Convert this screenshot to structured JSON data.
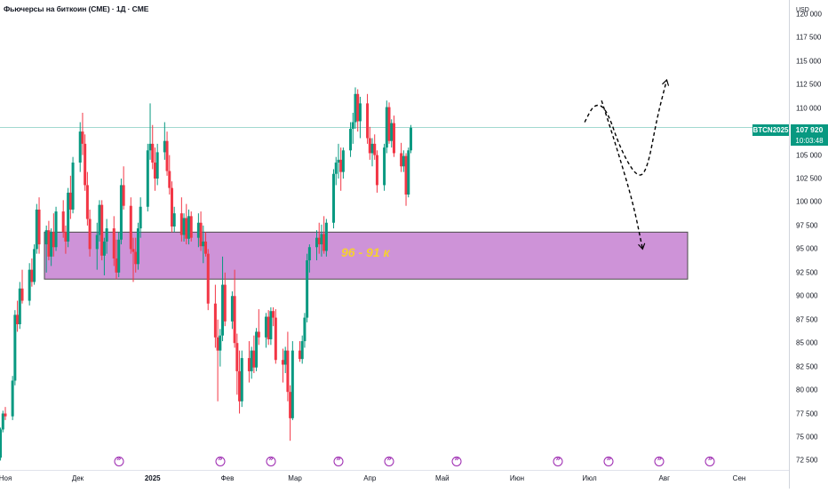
{
  "title": "Фьючерсы на биткоин (CME) · 1Д · CME",
  "currency": "USD",
  "price_tag": {
    "symbol": "BTCN2025",
    "price": "107 920",
    "countdown": "10:03:48"
  },
  "zone": {
    "label": "96 - 91 к",
    "top": 96800,
    "bottom": 91800,
    "fill": "#ce93d8",
    "border": "#4a4a4a",
    "label_color": "#f5d130"
  },
  "colors": {
    "up": "#089981",
    "down": "#f23645",
    "price_line": "#089981",
    "event": "#9c27b0"
  },
  "y_axis": {
    "ticks": [
      "120 000",
      "117 500",
      "115 000",
      "112 500",
      "110 000",
      "107 500",
      "105 000",
      "102 500",
      "100 000",
      "97 500",
      "95 000",
      "92 500",
      "90 000",
      "87 500",
      "85 000",
      "82 500",
      "80 000",
      "77 500",
      "75 000",
      "72 500"
    ],
    "min": 71500,
    "max": 121500
  },
  "x_axis": {
    "labels": [
      {
        "text": "Ноя",
        "date": "2024-11-01"
      },
      {
        "text": "Дек",
        "date": "2024-12-01"
      },
      {
        "text": "2025",
        "date": "2025-01-01",
        "bold": true
      },
      {
        "text": "Фев",
        "date": "2025-02-01"
      },
      {
        "text": "Мар",
        "date": "2025-03-01"
      },
      {
        "text": "Апр",
        "date": "2025-04-01"
      },
      {
        "text": "Май",
        "date": "2025-05-01"
      },
      {
        "text": "Июн",
        "date": "2025-06-01"
      },
      {
        "text": "Июл",
        "date": "2025-07-01"
      },
      {
        "text": "Авг",
        "date": "2025-08-01"
      },
      {
        "text": "Сен",
        "date": "2025-09-01"
      }
    ]
  },
  "events": [
    "2024-12-18",
    "2025-01-29",
    "2025-02-19",
    "2025-03-19",
    "2025-04-09",
    "2025-05-07",
    "2025-06-18",
    "2025-07-09",
    "2025-07-30",
    "2025-08-20"
  ],
  "forecast_paths": [
    {
      "name": "Up scenario",
      "points": [
        [
          "2025-06-29",
          108500
        ],
        [
          "2025-07-03",
          110500
        ],
        [
          "2025-07-08",
          110000
        ],
        [
          "2025-07-14",
          105500
        ],
        [
          "2025-07-21",
          102500
        ],
        [
          "2025-07-25",
          103500
        ],
        [
          "2025-07-29",
          109000
        ],
        [
          "2025-08-02",
          113000
        ]
      ]
    },
    {
      "name": "Down scenario",
      "points": [
        [
          "2025-07-06",
          110800
        ],
        [
          "2025-07-12",
          106000
        ],
        [
          "2025-07-19",
          100000
        ],
        [
          "2025-07-23",
          95000
        ]
      ]
    }
  ],
  "chart_data": {
    "type": "candlestick",
    "title": "Фьючерсы на биткоин (CME) · 1Д · CME",
    "xlabel": "",
    "ylabel": "",
    "ylim": [
      71500,
      121500
    ],
    "current_price": 107920,
    "start_date": "2024-10-28",
    "ohlc": [
      [
        70500,
        73500,
        70000,
        73000
      ],
      [
        73000,
        74500,
        72200,
        72800
      ],
      [
        72800,
        76000,
        72500,
        75800
      ],
      [
        75800,
        77800,
        75500,
        77500
      ],
      [
        77500,
        78200,
        76800,
        77200
      ],
      [
        77200,
        81500,
        76800,
        81000
      ],
      [
        81000,
        88500,
        80500,
        88000
      ],
      [
        88000,
        89500,
        86200,
        87000
      ],
      [
        87000,
        91500,
        86500,
        90800
      ],
      [
        90800,
        92800,
        89200,
        89500
      ],
      [
        89500,
        93500,
        89000,
        92800
      ],
      [
        92800,
        94000,
        91000,
        91500
      ],
      [
        91500,
        95500,
        91200,
        95000
      ],
      [
        95000,
        99800,
        94500,
        99200
      ],
      [
        99200,
        100500,
        94500,
        95500
      ],
      [
        95500,
        97500,
        92500,
        97000
      ],
      [
        97000,
        98000,
        93800,
        94200
      ],
      [
        94200,
        97200,
        93200,
        96800
      ],
      [
        96800,
        98800,
        94200,
        95200
      ],
      [
        95200,
        99500,
        94800,
        99000
      ],
      [
        99000,
        100200,
        96200,
        96800
      ],
      [
        96800,
        97500,
        94500,
        95800
      ],
      [
        95800,
        101500,
        95200,
        101000
      ],
      [
        101000,
        102800,
        98200,
        99200
      ],
      [
        99200,
        104800,
        98800,
        104200
      ],
      [
        104200,
        108500,
        103200,
        107500
      ],
      [
        107500,
        109500,
        105000,
        106200
      ],
      [
        106200,
        107200,
        101200,
        101800
      ],
      [
        101800,
        103200,
        97500,
        98200
      ],
      [
        98200,
        99200,
        94200,
        95000
      ],
      [
        95000,
        97800,
        92800,
        96500
      ],
      [
        96500,
        100200,
        95800,
        99700
      ],
      [
        99700,
        100200,
        93800,
        94300
      ],
      [
        94300,
        96200,
        92200,
        95800
      ],
      [
        95800,
        98200,
        94500,
        97200
      ],
      [
        97200,
        98500,
        93200,
        94000
      ],
      [
        94000,
        96000,
        91800,
        92500
      ],
      [
        92500,
        96800,
        92000,
        96000
      ],
      [
        96000,
        102500,
        95500,
        101800
      ],
      [
        101800,
        103800,
        99200,
        99600
      ],
      [
        99600,
        100500,
        94500,
        95000
      ],
      [
        95000,
        96200,
        91500,
        94700
      ],
      [
        94700,
        96200,
        92500,
        93400
      ],
      [
        93400,
        97800,
        92800,
        97200
      ],
      [
        97200,
        100500,
        96200,
        99500
      ],
      [
        99500,
        106200,
        99000,
        105500
      ],
      [
        105500,
        110500,
        104500,
        106200
      ],
      [
        106200,
        108200,
        103500,
        104200
      ],
      [
        104200,
        105800,
        101200,
        102500
      ],
      [
        102500,
        106200,
        101800,
        105300
      ],
      [
        105300,
        108500,
        104500,
        106500
      ],
      [
        106500,
        107500,
        102800,
        103300
      ],
      [
        103300,
        105000,
        100800,
        101500
      ],
      [
        101500,
        102200,
        96800,
        97400
      ],
      [
        97400,
        99500,
        96800,
        98800
      ],
      [
        98800,
        100500,
        95800,
        96500
      ],
      [
        96500,
        98800,
        95800,
        98300
      ],
      [
        98300,
        99800,
        95500,
        96100
      ],
      [
        96100,
        99200,
        95500,
        98500
      ],
      [
        98500,
        99000,
        95800,
        96200
      ],
      [
        96200,
        98800,
        95200,
        97800
      ],
      [
        97800,
        99000,
        94800,
        95300
      ],
      [
        95300,
        97500,
        93500,
        95800
      ],
      [
        95800,
        96800,
        94200,
        94500
      ],
      [
        94500,
        95000,
        88500,
        89200
      ],
      [
        89200,
        91200,
        84500,
        85600
      ],
      [
        85600,
        87500,
        78800,
        84200
      ],
      [
        84200,
        86500,
        82500,
        85800
      ],
      [
        85800,
        94200,
        85200,
        91200
      ],
      [
        91200,
        92500,
        86800,
        87300
      ],
      [
        87300,
        90500,
        86500,
        90000
      ],
      [
        90000,
        92800,
        84500,
        85000
      ],
      [
        85000,
        86000,
        79500,
        82000
      ],
      [
        82000,
        84200,
        77500,
        78800
      ],
      [
        78800,
        84200,
        78200,
        83400
      ],
      [
        83400,
        85200,
        80800,
        82000
      ],
      [
        82000,
        84600,
        81200,
        84200
      ],
      [
        84200,
        85800,
        81800,
        82400
      ],
      [
        82400,
        86600,
        82000,
        86200
      ],
      [
        86200,
        88600,
        84800,
        85600
      ],
      [
        85600,
        88200,
        84500,
        87800
      ],
      [
        87800,
        88500,
        84800,
        85400
      ],
      [
        85400,
        88800,
        84800,
        88400
      ],
      [
        88400,
        88800,
        86800,
        87700
      ],
      [
        87700,
        88600,
        82800,
        83200
      ],
      [
        83200,
        84400,
        80800,
        82700
      ],
      [
        82700,
        84600,
        81800,
        84200
      ],
      [
        84200,
        86200,
        78800,
        79800
      ],
      [
        79800,
        80500,
        74600,
        77000
      ],
      [
        77000,
        85200,
        76800,
        84200
      ],
      [
        84200,
        85200,
        83000,
        83300
      ],
      [
        83300,
        85800,
        82800,
        85200
      ],
      [
        85200,
        88200,
        84500,
        87700
      ],
      [
        87700,
        94500,
        87200,
        93800
      ],
      [
        93800,
        95500,
        92500,
        95200
      ],
      [
        95200,
        97000,
        93800,
        96200
      ],
      [
        96200,
        97800,
        94500,
        95500
      ],
      [
        95500,
        97600,
        94200,
        96600
      ],
      [
        96600,
        98500,
        94500,
        94800
      ],
      [
        94800,
        98200,
        94200,
        97800
      ],
      [
        97800,
        103500,
        97200,
        103000
      ],
      [
        103000,
        104800,
        101800,
        104200
      ],
      [
        104200,
        106200,
        102500,
        104500
      ],
      [
        104500,
        105800,
        101200,
        103200
      ],
      [
        103200,
        105800,
        102500,
        105500
      ],
      [
        105500,
        108500,
        104800,
        107800
      ],
      [
        107800,
        109500,
        106200,
        108500
      ],
      [
        108500,
        112200,
        107800,
        111500
      ],
      [
        111500,
        112000,
        107500,
        108600
      ],
      [
        108600,
        111200,
        106800,
        110500
      ],
      [
        110500,
        111500,
        106200,
        106800
      ],
      [
        106800,
        108000,
        104500,
        105200
      ],
      [
        105200,
        106800,
        103800,
        106200
      ],
      [
        106200,
        107200,
        104500,
        105000
      ],
      [
        105000,
        105500,
        101000,
        101800
      ],
      [
        101800,
        106200,
        101200,
        105800
      ],
      [
        105800,
        110800,
        105200,
        110100
      ],
      [
        110100,
        110600,
        106200,
        106500
      ],
      [
        106500,
        108800,
        105800,
        108400
      ],
      [
        108400,
        109200,
        104800,
        105200
      ],
      [
        105200,
        106300,
        103200,
        103800
      ],
      [
        103800,
        105500,
        103200,
        104900
      ],
      [
        104900,
        105200,
        99600,
        100800
      ],
      [
        100800,
        105800,
        100500,
        105500
      ],
      [
        105500,
        108200,
        105200,
        107920
      ]
    ]
  }
}
